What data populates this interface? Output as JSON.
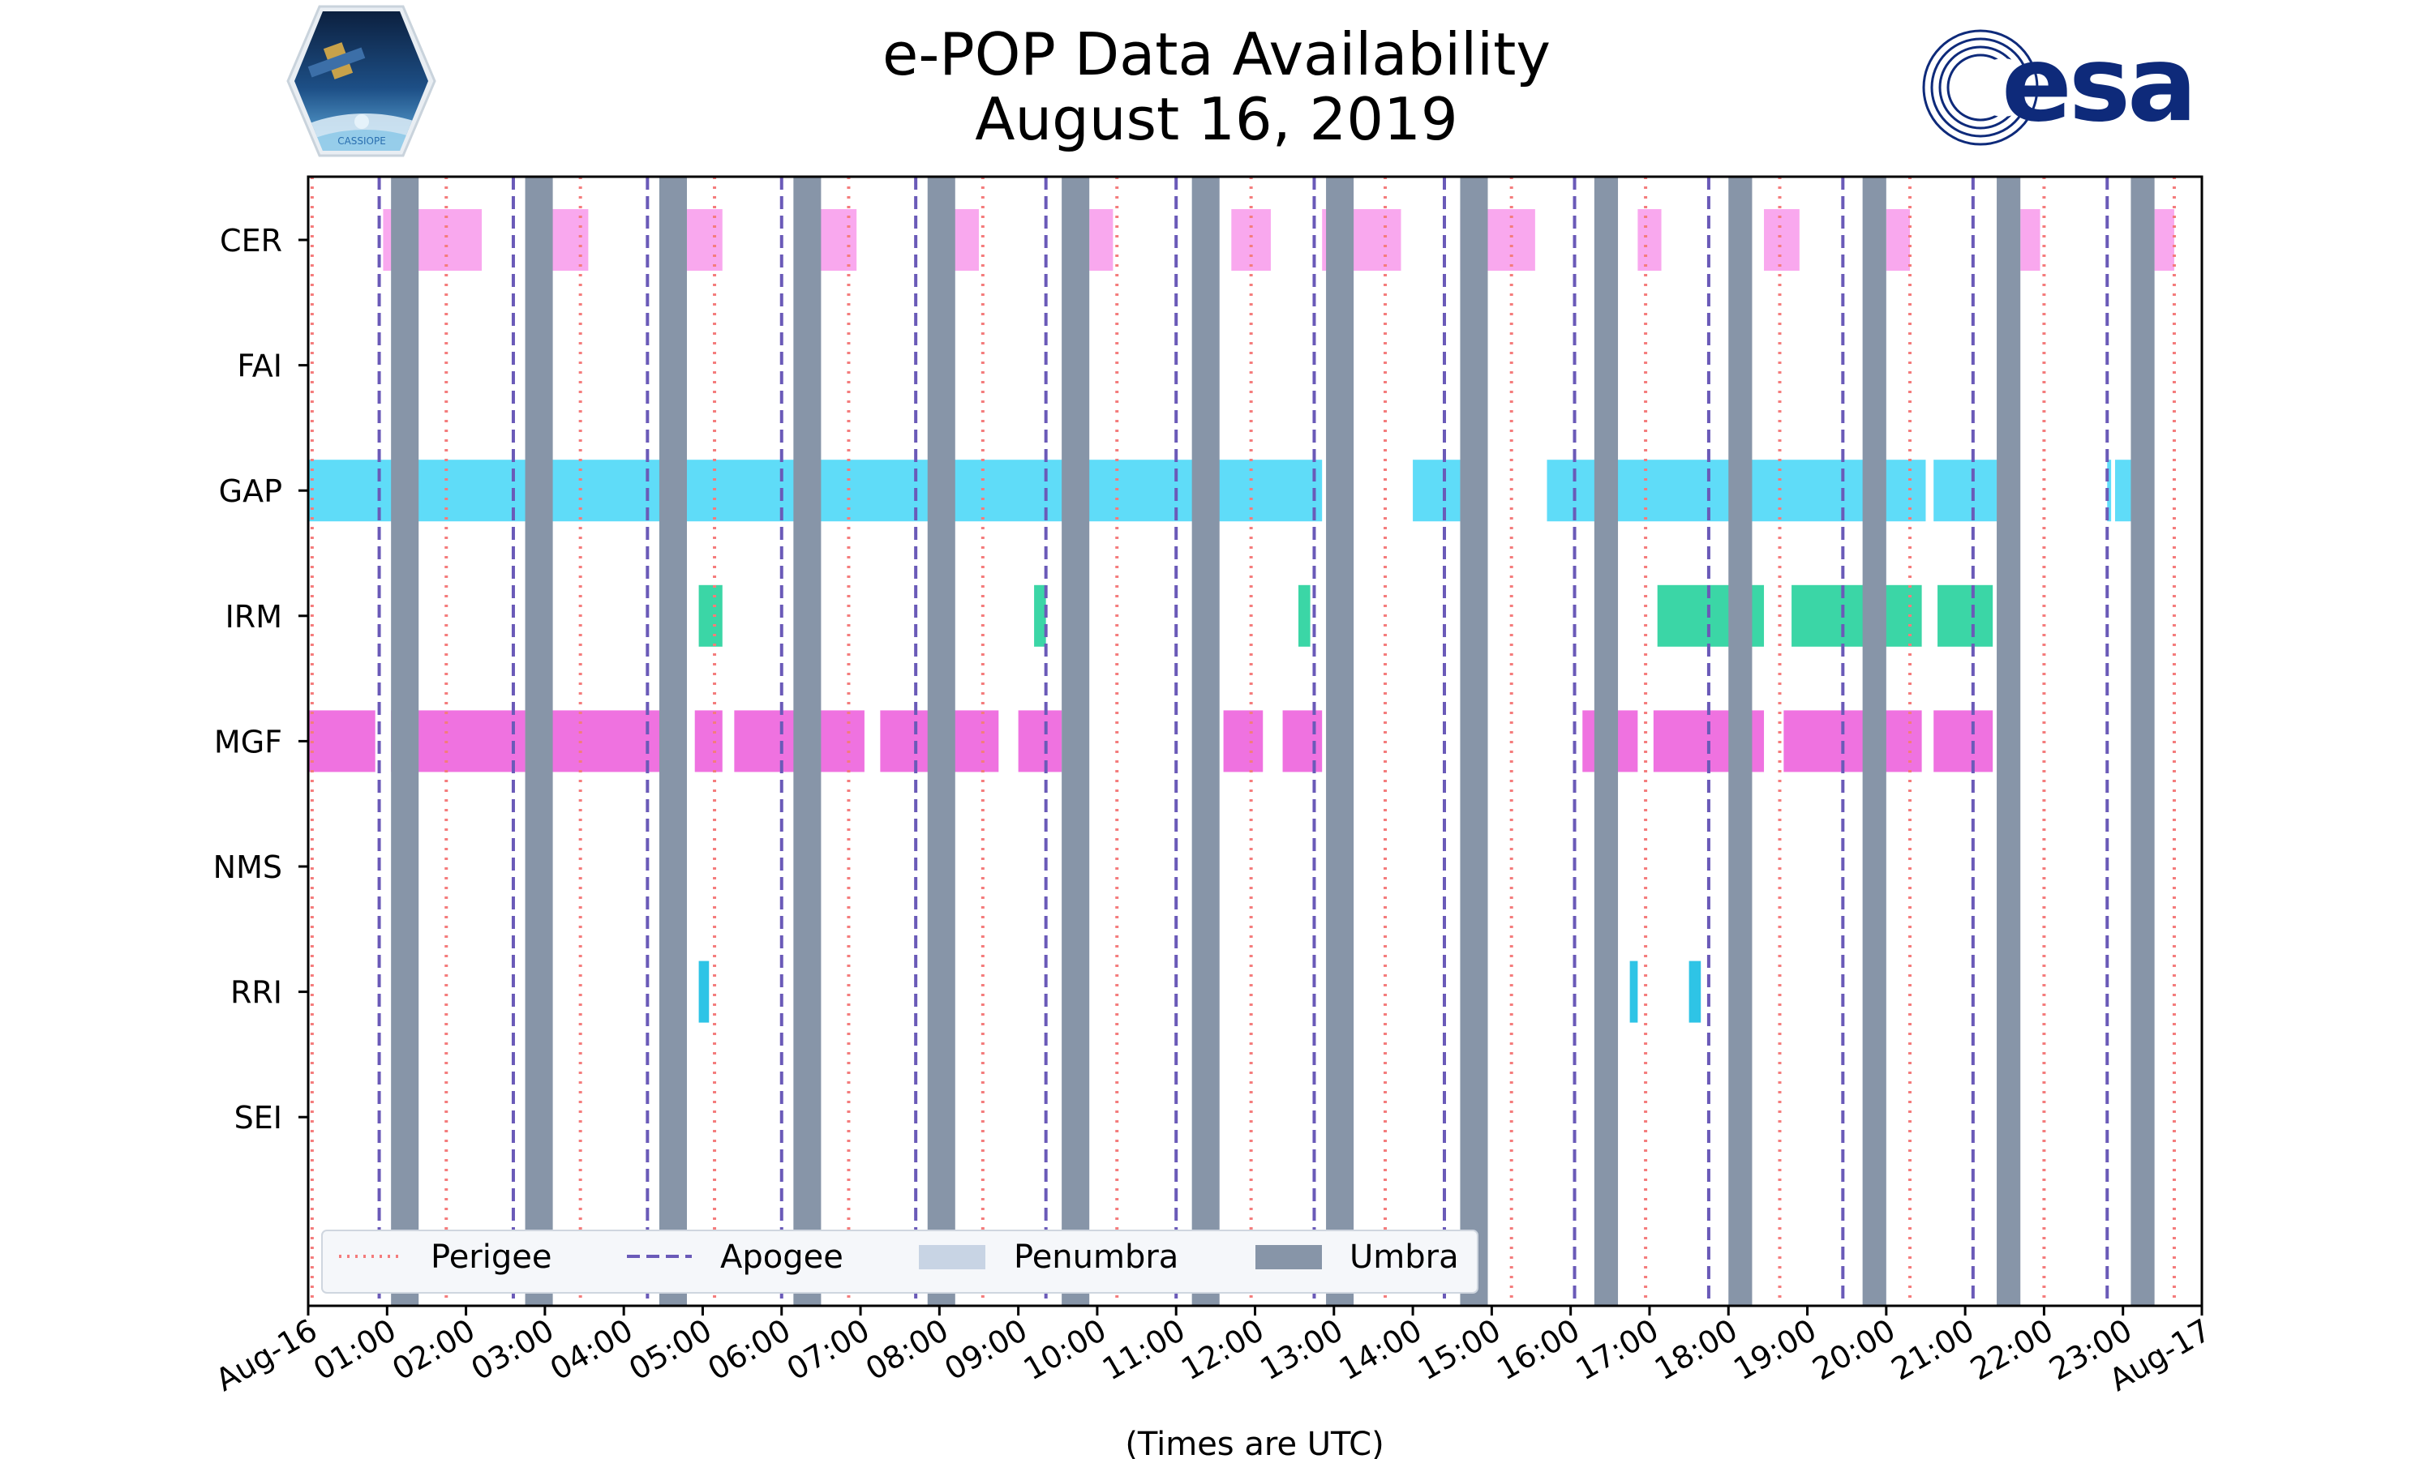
{
  "chart_data": {
    "type": "timeline",
    "title": "e-POP Data Availability",
    "subtitle": "August 16, 2019",
    "xlabel": "(Times are UTC)",
    "x_unit": "hours since Aug-16 00:00 UTC",
    "x_range": [
      0,
      24
    ],
    "x_ticks": [
      {
        "hour": 0,
        "label": "Aug-16"
      },
      {
        "hour": 1,
        "label": "01:00"
      },
      {
        "hour": 2,
        "label": "02:00"
      },
      {
        "hour": 3,
        "label": "03:00"
      },
      {
        "hour": 4,
        "label": "04:00"
      },
      {
        "hour": 5,
        "label": "05:00"
      },
      {
        "hour": 6,
        "label": "06:00"
      },
      {
        "hour": 7,
        "label": "07:00"
      },
      {
        "hour": 8,
        "label": "08:00"
      },
      {
        "hour": 9,
        "label": "09:00"
      },
      {
        "hour": 10,
        "label": "10:00"
      },
      {
        "hour": 11,
        "label": "11:00"
      },
      {
        "hour": 12,
        "label": "12:00"
      },
      {
        "hour": 13,
        "label": "13:00"
      },
      {
        "hour": 14,
        "label": "14:00"
      },
      {
        "hour": 15,
        "label": "15:00"
      },
      {
        "hour": 16,
        "label": "16:00"
      },
      {
        "hour": 17,
        "label": "17:00"
      },
      {
        "hour": 18,
        "label": "18:00"
      },
      {
        "hour": 19,
        "label": "19:00"
      },
      {
        "hour": 20,
        "label": "20:00"
      },
      {
        "hour": 21,
        "label": "21:00"
      },
      {
        "hour": 22,
        "label": "22:00"
      },
      {
        "hour": 23,
        "label": "23:00"
      },
      {
        "hour": 24,
        "label": "Aug-17"
      }
    ],
    "instruments": [
      "CER",
      "FAI",
      "GAP",
      "IRM",
      "MGF",
      "NMS",
      "RRI",
      "SEI"
    ],
    "instrument_colors": {
      "CER": "#f9a8ee",
      "FAI": "#cccccc",
      "GAP": "#5fdcf8",
      "IRM": "#3bd6a6",
      "MGF": "#ef72e0",
      "NMS": "#cccccc",
      "RRI": "#2ec4e6",
      "SEI": "#cccccc"
    },
    "availability": {
      "CER": [
        [
          0.95,
          2.2
        ],
        [
          2.95,
          3.55
        ],
        [
          4.65,
          5.25
        ],
        [
          6.4,
          6.95
        ],
        [
          8.15,
          8.5
        ],
        [
          9.9,
          10.2
        ],
        [
          11.7,
          12.2
        ],
        [
          12.85,
          13.85
        ],
        [
          14.6,
          15.55
        ],
        [
          16.85,
          17.15
        ],
        [
          18.45,
          18.9
        ],
        [
          20.0,
          20.3
        ],
        [
          21.7,
          21.95
        ],
        [
          23.4,
          23.65
        ]
      ],
      "FAI": [],
      "GAP": [
        [
          0.0,
          12.85
        ],
        [
          14.0,
          14.6
        ],
        [
          15.7,
          20.5
        ],
        [
          20.6,
          21.4
        ],
        [
          22.8,
          22.85
        ],
        [
          22.9,
          23.3
        ]
      ],
      "IRM": [
        [
          4.95,
          5.25
        ],
        [
          9.2,
          9.35
        ],
        [
          12.55,
          12.7
        ],
        [
          16.35,
          16.5
        ],
        [
          17.1,
          18.45
        ],
        [
          18.8,
          20.45
        ],
        [
          20.65,
          21.35
        ]
      ],
      "MGF": [
        [
          0.0,
          0.85
        ],
        [
          1.05,
          2.75
        ],
        [
          3.0,
          4.7
        ],
        [
          4.9,
          5.25
        ],
        [
          5.4,
          7.05
        ],
        [
          7.25,
          8.75
        ],
        [
          9.0,
          9.55
        ],
        [
          11.6,
          12.1
        ],
        [
          12.35,
          12.85
        ],
        [
          16.15,
          16.85
        ],
        [
          17.05,
          18.45
        ],
        [
          18.7,
          20.45
        ],
        [
          20.6,
          21.35
        ]
      ],
      "NMS": [],
      "RRI": [
        [
          4.95,
          5.08
        ],
        [
          16.75,
          16.85
        ],
        [
          17.5,
          17.65
        ]
      ],
      "SEI": []
    },
    "perigee": [
      0.05,
      1.75,
      3.45,
      5.15,
      6.85,
      8.55,
      10.25,
      11.95,
      13.65,
      15.25,
      16.95,
      18.65,
      20.3,
      22.0,
      23.65
    ],
    "apogee": [
      0.9,
      2.6,
      4.3,
      6.0,
      7.7,
      9.35,
      11.0,
      12.75,
      14.4,
      16.05,
      17.75,
      19.45,
      21.1,
      22.8
    ],
    "umbra": [
      [
        1.05,
        1.4
      ],
      [
        2.75,
        3.1
      ],
      [
        4.45,
        4.8
      ],
      [
        6.15,
        6.5
      ],
      [
        7.85,
        8.2
      ],
      [
        9.55,
        9.9
      ],
      [
        11.2,
        11.55
      ],
      [
        12.9,
        13.25
      ],
      [
        14.6,
        14.95
      ],
      [
        16.3,
        16.6
      ],
      [
        18.0,
        18.3
      ],
      [
        19.7,
        20.0
      ],
      [
        21.4,
        21.7
      ],
      [
        23.1,
        23.4
      ]
    ],
    "penumbra": [],
    "legend": {
      "position": "lower-left",
      "entries": [
        {
          "label": "Perigee",
          "style": "dotted",
          "color": "#f47c7c"
        },
        {
          "label": "Apogee",
          "style": "dashed",
          "color": "#6a5ab8"
        },
        {
          "label": "Penumbra",
          "style": "patch",
          "color": "#c8d4e4"
        },
        {
          "label": "Umbra",
          "style": "patch",
          "color": "#8795a8"
        }
      ]
    }
  },
  "logos": {
    "left": {
      "name": "CASSIOPE mission patch",
      "text": "CASSIOPE"
    },
    "right": {
      "name": "ESA logo",
      "text": "esa",
      "color": "#0e2a7a"
    }
  },
  "colors": {
    "perigee": "#f47c7c",
    "apogee": "#6a5ab8",
    "umbra": "#8795a8",
    "penumbra": "#c8d4e4"
  }
}
